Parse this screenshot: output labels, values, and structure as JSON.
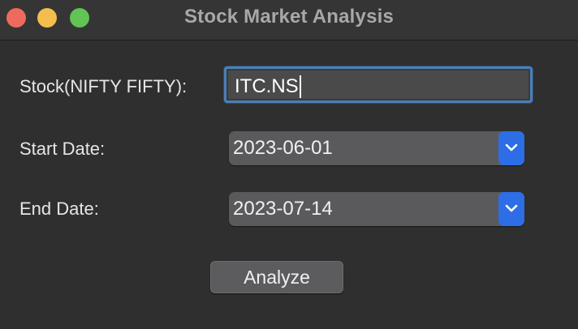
{
  "window": {
    "title": "Stock Market Analysis"
  },
  "form": {
    "stock_label": "Stock(NIFTY FIFTY):",
    "stock_value": "ITC.NS",
    "start_label": "Start Date:",
    "start_value": "2023-06-01",
    "end_label": "End Date:",
    "end_value": "2023-07-14",
    "analyze_label": "Analyze"
  },
  "icons": {
    "close": "close-window-icon",
    "minimize": "minimize-window-icon",
    "maximize": "maximize-window-icon",
    "dropdown": "chevron-down-icon"
  },
  "colors": {
    "accent": "#2d6ee6",
    "focus_ring": "#4d7fb5",
    "traffic_close": "#ee6a5e",
    "traffic_minimize": "#f4be4f",
    "traffic_maximize": "#61c454"
  }
}
